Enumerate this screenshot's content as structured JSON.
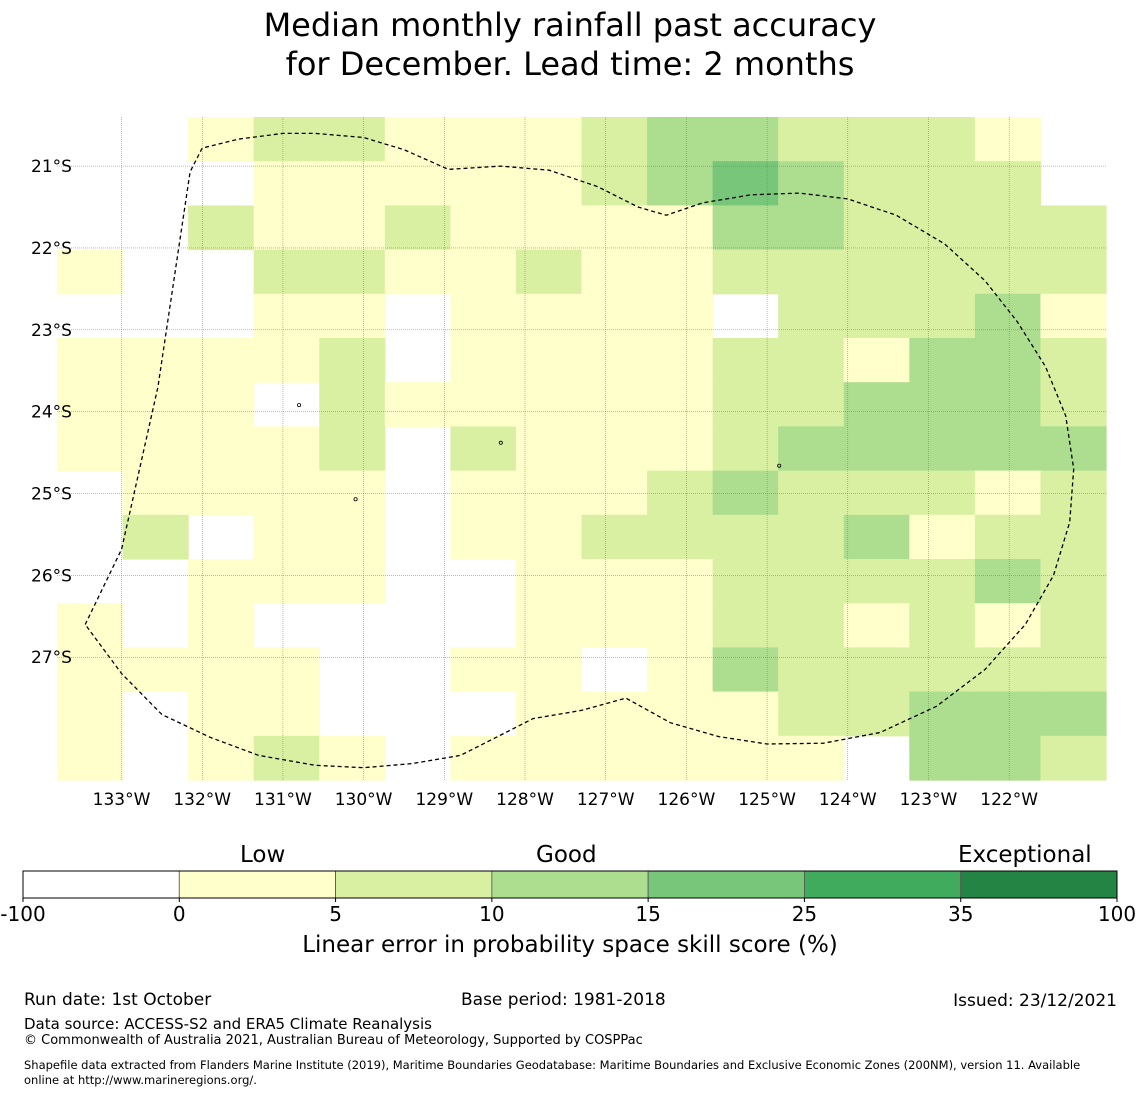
{
  "title": {
    "line1": "Median monthly rainfall past accuracy",
    "line2": "for December. Lead time: 2 months"
  },
  "map": {
    "lon_min": -133.8,
    "lon_max": -120.8,
    "lat_top": -20.4,
    "lat_bottom": -28.5,
    "lat_ticks": [
      {
        "value": -21,
        "label": "21°S"
      },
      {
        "value": -22,
        "label": "22°S"
      },
      {
        "value": -23,
        "label": "23°S"
      },
      {
        "value": -24,
        "label": "24°S"
      },
      {
        "value": -25,
        "label": "25°S"
      },
      {
        "value": -26,
        "label": "26°S"
      },
      {
        "value": -27,
        "label": "27°S"
      }
    ],
    "lon_ticks": [
      {
        "value": -133,
        "label": "133°W"
      },
      {
        "value": -132,
        "label": "132°W"
      },
      {
        "value": -131,
        "label": "131°W"
      },
      {
        "value": -130,
        "label": "130°W"
      },
      {
        "value": -129,
        "label": "129°W"
      },
      {
        "value": -128,
        "label": "128°W"
      },
      {
        "value": -127,
        "label": "127°W"
      },
      {
        "value": -126,
        "label": "126°W"
      },
      {
        "value": -125,
        "label": "125°W"
      },
      {
        "value": -124,
        "label": "124°W"
      },
      {
        "value": -123,
        "label": "123°W"
      },
      {
        "value": -122,
        "label": "122°W"
      }
    ],
    "grid_cols": 16,
    "grid_rows": 15,
    "grid_legend": "0 = below 0 (white), 1 = 0-5, 2 = 5-10, 3 = 10-15, 4 = 15-25",
    "grid": [
      "0012211123322210",
      "0001111123432220",
      "0021121111332222",
      "1002211211222222",
      "0001101111022231",
      "1111201111221332",
      "1110211111223332",
      "1111202111233333",
      "0111101112322212",
      "0201101122223122",
      "0011100111222232",
      "1010000111221212",
      "1111001101322222",
      "1011000111122333",
      "1012101111110332"
    ],
    "boundary": [
      [
        -133.45,
        -26.6
      ],
      [
        -133.0,
        -25.68
      ],
      [
        -132.55,
        -23.7
      ],
      [
        -132.15,
        -21.07
      ],
      [
        -132.0,
        -20.78
      ],
      [
        -131.55,
        -20.67
      ],
      [
        -131.0,
        -20.6
      ],
      [
        -130.6,
        -20.6
      ],
      [
        -130.0,
        -20.65
      ],
      [
        -129.5,
        -20.8
      ],
      [
        -128.95,
        -21.04
      ],
      [
        -128.3,
        -21.0
      ],
      [
        -127.7,
        -21.05
      ],
      [
        -127.1,
        -21.25
      ],
      [
        -126.6,
        -21.5
      ],
      [
        -126.25,
        -21.6
      ],
      [
        -125.8,
        -21.45
      ],
      [
        -125.2,
        -21.35
      ],
      [
        -124.6,
        -21.33
      ],
      [
        -124.0,
        -21.4
      ],
      [
        -123.4,
        -21.6
      ],
      [
        -122.8,
        -21.95
      ],
      [
        -122.3,
        -22.4
      ],
      [
        -121.9,
        -22.9
      ],
      [
        -121.55,
        -23.45
      ],
      [
        -121.3,
        -24.05
      ],
      [
        -121.2,
        -24.7
      ],
      [
        -121.25,
        -25.35
      ],
      [
        -121.45,
        -26.0
      ],
      [
        -121.8,
        -26.6
      ],
      [
        -122.3,
        -27.15
      ],
      [
        -122.9,
        -27.6
      ],
      [
        -123.6,
        -27.92
      ],
      [
        -124.3,
        -28.05
      ],
      [
        -125.0,
        -28.06
      ],
      [
        -125.6,
        -27.97
      ],
      [
        -126.2,
        -27.8
      ],
      [
        -126.75,
        -27.5
      ],
      [
        -127.3,
        -27.65
      ],
      [
        -127.9,
        -27.75
      ],
      [
        -128.3,
        -27.95
      ],
      [
        -128.8,
        -28.2
      ],
      [
        -129.4,
        -28.3
      ],
      [
        -130.0,
        -28.35
      ],
      [
        -130.6,
        -28.32
      ],
      [
        -131.3,
        -28.2
      ],
      [
        -131.9,
        -27.98
      ],
      [
        -132.5,
        -27.7
      ],
      [
        -133.0,
        -27.2
      ],
      [
        -133.45,
        -26.6
      ]
    ],
    "islands": [
      {
        "lon": -128.3,
        "lat": -24.38
      },
      {
        "lon": -130.8,
        "lat": -23.92
      },
      {
        "lon": -130.1,
        "lat": -25.07
      },
      {
        "lon": -124.85,
        "lat": -24.66
      }
    ]
  },
  "colorbar": {
    "category_low": "Low",
    "category_good": "Good",
    "category_exceptional": "Exceptional",
    "ticks": [
      "-100",
      "0",
      "5",
      "10",
      "15",
      "25",
      "35",
      "100"
    ],
    "colors": [
      "#ffffff",
      "#ffffcc",
      "#d9f0a3",
      "#addd8e",
      "#78c679",
      "#41ab5d",
      "#238443"
    ],
    "axis_label": "Linear error in probability space skill score (%)"
  },
  "footer": {
    "run_date": "Run date: 1st October",
    "base_period": "Base period: 1981-2018",
    "issued": "Issued: 23/12/2021",
    "data_source": "Data source: ACCESS-S2 and ERA5 Climate Reanalysis",
    "copyright": "© Commonwealth of Australia 2021, Australian Bureau of Meteorology, Supported by COSPPac",
    "shapefile_line1": "Shapefile data extracted from Flanders Marine Institute (2019), Maritime Boundaries Geodatabase: Maritime Boundaries and Exclusive Economic Zones (200NM), version 11. Available",
    "shapefile_line2": "online at http://www.marineregions.org/."
  }
}
